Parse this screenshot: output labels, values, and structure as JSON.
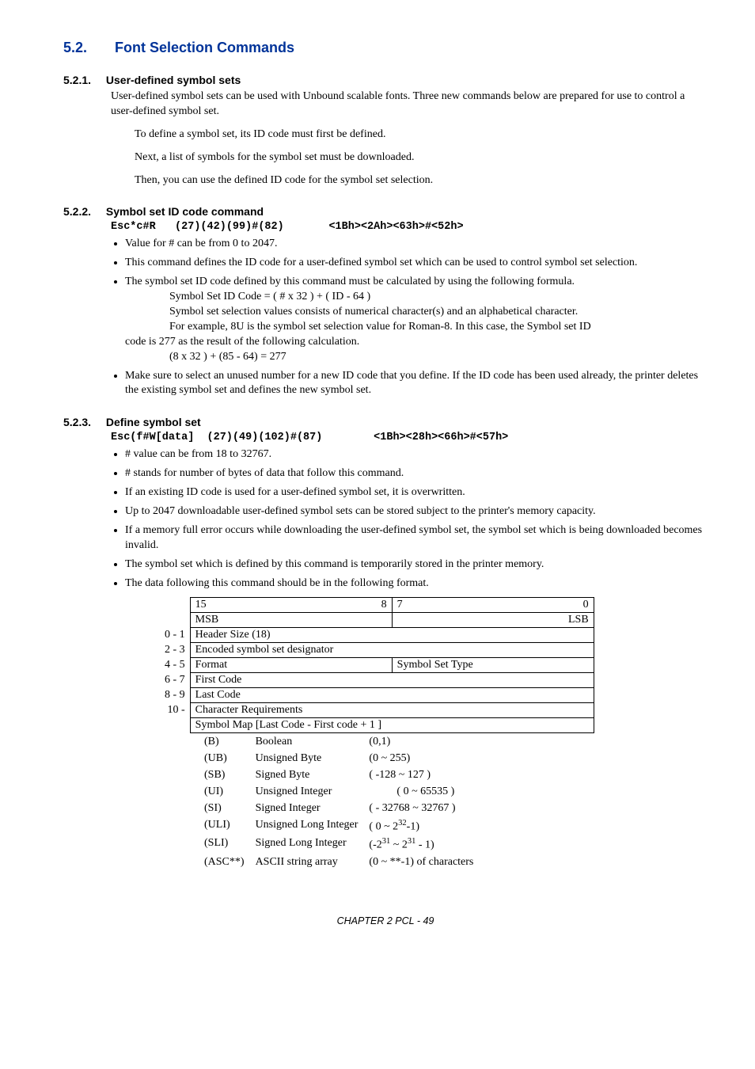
{
  "heading": {
    "num": "5.2.",
    "text": "Font Selection Commands"
  },
  "sec521": {
    "num": "5.2.1.",
    "title": "User-defined symbol sets",
    "para": "User-defined symbol sets can be used with Unbound scalable fonts.  Three new commands below are prepared for use to control a user-defined symbol set.",
    "lines": [
      "To define a symbol set,  its ID code must first be defined.",
      "Next, a list of symbols for the symbol set must be downloaded.",
      "Then,  you can use the defined ID code for the symbol set selection."
    ]
  },
  "sec522": {
    "num": "5.2.2.",
    "title": "Symbol set ID code command",
    "mono": "Esc*c#R   (27)(42)(99)#(82)       <1Bh><2Ah><63h>#<52h>",
    "b1": "Value for # can be from 0 to 2047.",
    "b2": "This command defines the ID code for a user-defined symbol set which can be used to control symbol set selection.",
    "b3_lead": "The symbol set ID code defined by this command must be calculated by using the following formula.",
    "b3_lines": [
      "Symbol Set ID Code = ( # x 32 ) + ( ID - 64 )",
      "Symbol set selection values consists of numerical character(s) and an alphabetical character.",
      "For example,  8U is the symbol set selection value for Roman-8.  In this case,  the Symbol set ID"
    ],
    "b3_tail": "code is 277 as the result of the following calculation.",
    "b3_calc": "(8 x 32 ) + (85 - 64) = 277",
    "b4": "Make sure to select an unused number for a new ID code that you define. If the ID code has been used already,  the printer deletes the existing symbol set and defines the new symbol set."
  },
  "sec523": {
    "num": "5.2.3.",
    "title": "Define symbol set",
    "mono": "Esc(f#W[data]  (27)(49)(102)#(87)        <1Bh><28h><66h>#<57h>",
    "bullets": [
      "# value can be from 18 to 32767.",
      "# stands for number of bytes of data that follow this command.",
      "If an existing ID code is used for a user-defined symbol set,  it is overwritten.",
      "Up to 2047 downloadable user-defined symbol sets can be stored subject to the printer's memory capacity.",
      "If a memory full error occurs while downloading the user-defined symbol set,  the symbol set which is being downloaded becomes invalid.",
      "The symbol set which is defined by this command is temporarily stored in the printer memory.",
      "The data following this command should be in the following format."
    ],
    "table": {
      "hdr": {
        "c1a": "15",
        "c1b": "8",
        "c2a": "7",
        "c2b": "0",
        "m1": "MSB",
        "m2": "LSB"
      },
      "rows": [
        {
          "label": "0 - 1",
          "span": "Header Size (18)"
        },
        {
          "label": "2 - 3",
          "span": "Encoded symbol set designator"
        },
        {
          "label": "4 - 5",
          "c1": "Format",
          "c2": "Symbol Set Type"
        },
        {
          "label": "6 - 7",
          "span": "First Code"
        },
        {
          "label": "8 - 9",
          "span": "Last Code"
        },
        {
          "label": "10 -",
          "span": "Character Requirements"
        },
        {
          "label": "",
          "span": "Symbol Map [Last Code - First code + 1 ]"
        }
      ]
    },
    "types": [
      {
        "a": "(B)",
        "b": "Boolean",
        "c": "(0,1)"
      },
      {
        "a": "(UB)",
        "b": "Unsigned Byte",
        "c": "(0 ~ 255)"
      },
      {
        "a": "(SB)",
        "b": "Signed Byte",
        "c": "( -128 ~ 127 )"
      },
      {
        "a": "(UI)",
        "b": "Unsigned Integer",
        "c": "          ( 0 ~ 65535 )"
      },
      {
        "a": "(SI)",
        "b": "Signed Integer",
        "c": "( - 32768 ~ 32767 )"
      },
      {
        "a": "(ULI)",
        "b": "Unsigned Long Integer",
        "c_html": "( 0 ~ 2<sup>32</sup>-1)"
      },
      {
        "a": "(SLI)",
        "b": "Signed Long Integer",
        "c_html": "(-2<sup>31</sup> ~ 2<sup>31</sup> - 1)"
      },
      {
        "a": "(ASC**)",
        "b": "ASCII string array",
        "c": "(0 ~ **-1) of characters"
      }
    ]
  },
  "footer": "CHAPTER 2 PCL - 49"
}
